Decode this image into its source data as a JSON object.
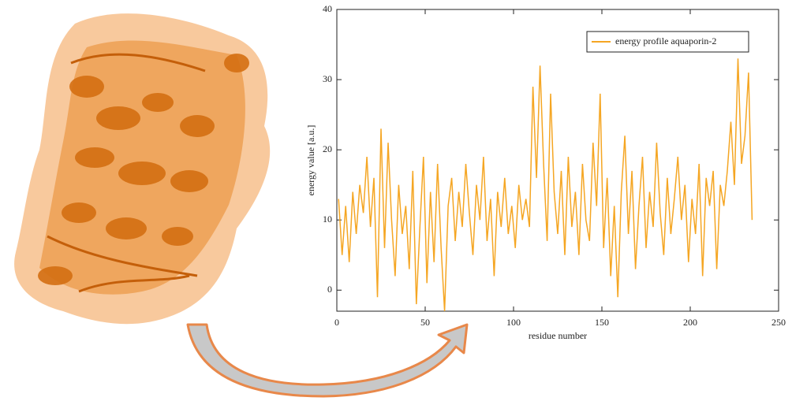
{
  "chart_data": {
    "type": "line",
    "x_label": "residue number",
    "y_label": "energy value [a.u.]",
    "xlim": [
      0,
      250
    ],
    "xticks": [
      0,
      50,
      100,
      150,
      200,
      250
    ],
    "ylim": [
      -3,
      40
    ],
    "yticks": [
      0,
      10,
      20,
      30,
      40
    ],
    "legend": "upper right",
    "x": [
      1,
      3,
      5,
      7,
      9,
      11,
      13,
      15,
      17,
      19,
      21,
      23,
      25,
      27,
      29,
      31,
      33,
      35,
      37,
      39,
      41,
      43,
      45,
      47,
      49,
      51,
      53,
      55,
      57,
      59,
      61,
      63,
      65,
      67,
      69,
      71,
      73,
      75,
      77,
      79,
      81,
      83,
      85,
      87,
      89,
      91,
      93,
      95,
      97,
      99,
      101,
      103,
      105,
      107,
      109,
      111,
      113,
      115,
      117,
      119,
      121,
      123,
      125,
      127,
      129,
      131,
      133,
      135,
      137,
      139,
      141,
      143,
      145,
      147,
      149,
      151,
      153,
      155,
      157,
      159,
      161,
      163,
      165,
      167,
      169,
      171,
      173,
      175,
      177,
      179,
      181,
      183,
      185,
      187,
      189,
      191,
      193,
      195,
      197,
      199,
      201,
      203,
      205,
      207,
      209,
      211,
      213,
      215,
      217,
      219,
      221,
      223,
      225,
      227,
      229,
      231,
      233,
      235
    ],
    "series": [
      {
        "name": "energy profile aquaporin-2",
        "color": "#f5a623",
        "values": [
          13,
          5,
          12,
          4,
          14,
          8,
          15,
          11,
          19,
          9,
          16,
          -1,
          23,
          6,
          21,
          10,
          2,
          15,
          8,
          12,
          3,
          17,
          -2,
          9,
          19,
          1,
          14,
          4,
          18,
          6,
          -3,
          12,
          16,
          7,
          14,
          9,
          18,
          11,
          5,
          15,
          10,
          19,
          7,
          13,
          2,
          14,
          9,
          16,
          8,
          12,
          6,
          15,
          10,
          13,
          9,
          29,
          16,
          32,
          18,
          7,
          28,
          14,
          8,
          17,
          5,
          19,
          9,
          14,
          5,
          18,
          10,
          7,
          21,
          12,
          28,
          6,
          16,
          2,
          12,
          -1,
          14,
          22,
          8,
          17,
          3,
          12,
          19,
          6,
          14,
          9,
          21,
          11,
          5,
          16,
          8,
          13,
          19,
          10,
          15,
          4,
          13,
          8,
          18,
          2,
          16,
          12,
          17,
          3,
          15,
          12,
          17,
          24,
          15,
          33,
          18,
          22,
          31,
          10
        ]
      }
    ]
  }
}
